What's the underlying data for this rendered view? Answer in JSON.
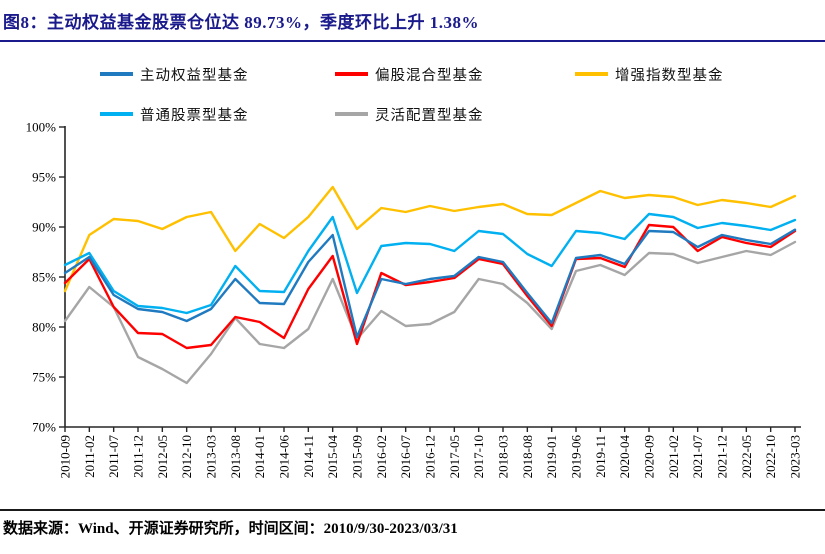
{
  "report": {
    "figure_title": "图8：主动权益基金股票仓位达 89.73%，季度环比上升 1.38%",
    "footer_note": "数据来源：Wind、开源证券研究所，时间区间：2010/9/30-2023/03/31"
  },
  "colors": {
    "title_navy": "#1a1a8c",
    "axis": "#262626",
    "footer_rule": "#1a1a1a"
  },
  "chart_data": {
    "type": "line",
    "title": "主动权益基金股票仓位",
    "xlabel": "",
    "ylabel": "",
    "ylim": [
      70,
      100
    ],
    "grid": false,
    "legend_position": "top",
    "ytick_values": [
      100,
      95,
      90,
      85,
      80,
      75,
      70
    ],
    "ytick_labels": [
      "100%",
      "95%",
      "90%",
      "85%",
      "80%",
      "75%",
      "70%"
    ],
    "categories": [
      "2010-09",
      "2011-02",
      "2011-07",
      "2011-12",
      "2012-05",
      "2012-10",
      "2013-03",
      "2013-08",
      "2014-01",
      "2014-06",
      "2014-11",
      "2015-04",
      "2015-09",
      "2016-02",
      "2016-07",
      "2016-12",
      "2017-05",
      "2017-10",
      "2018-03",
      "2018-08",
      "2019-01",
      "2019-06",
      "2019-11",
      "2020-04",
      "2020-09",
      "2021-02",
      "2021-07",
      "2021-12",
      "2022-05",
      "2022-10",
      "2023-03"
    ],
    "series": [
      {
        "name": "主动权益型基金",
        "color": "#1F7AC0",
        "values": [
          85.4,
          87.0,
          83.2,
          81.8,
          81.5,
          80.6,
          81.8,
          84.8,
          82.4,
          82.3,
          86.5,
          89.2,
          79.0,
          84.8,
          84.3,
          84.8,
          85.1,
          87.0,
          86.5,
          83.4,
          80.4,
          86.9,
          87.2,
          86.3,
          89.6,
          89.5,
          88.0,
          89.2,
          88.7,
          88.3,
          89.73
        ]
      },
      {
        "name": "偏股混合型基金",
        "color": "#FF0000",
        "values": [
          84.4,
          86.8,
          82.0,
          79.4,
          79.3,
          77.9,
          78.2,
          81.0,
          80.5,
          78.9,
          83.8,
          87.1,
          78.3,
          85.4,
          84.2,
          84.5,
          84.9,
          86.8,
          86.3,
          83.1,
          80.1,
          86.8,
          86.9,
          86.0,
          90.2,
          90.0,
          87.6,
          89.0,
          88.4,
          88.0,
          89.6
        ]
      },
      {
        "name": "增强指数型基金",
        "color": "#FFC000",
        "values": [
          83.6,
          89.2,
          90.8,
          90.6,
          89.8,
          91.0,
          91.5,
          87.6,
          90.3,
          88.9,
          91.0,
          94.0,
          89.8,
          91.9,
          91.5,
          92.1,
          91.6,
          92.0,
          92.3,
          91.3,
          91.2,
          92.4,
          93.6,
          92.9,
          93.2,
          93.0,
          92.2,
          92.7,
          92.4,
          92.0,
          93.1
        ]
      },
      {
        "name": "普通股票型基金",
        "color": "#00B0F0",
        "values": [
          86.2,
          87.4,
          83.6,
          82.1,
          81.9,
          81.4,
          82.2,
          86.1,
          83.6,
          83.5,
          87.6,
          91.0,
          83.4,
          88.1,
          88.4,
          88.3,
          87.6,
          89.6,
          89.3,
          87.3,
          86.1,
          89.6,
          89.4,
          88.8,
          91.3,
          91.0,
          89.9,
          90.4,
          90.1,
          89.7,
          90.7
        ]
      },
      {
        "name": "灵活配置型基金",
        "color": "#A6A6A6",
        "values": [
          80.6,
          84.0,
          82.0,
          77.0,
          75.8,
          74.4,
          77.3,
          80.9,
          78.3,
          77.9,
          79.8,
          84.8,
          78.8,
          81.6,
          80.1,
          80.3,
          81.5,
          84.8,
          84.3,
          82.4,
          79.8,
          85.6,
          86.2,
          85.2,
          87.4,
          87.3,
          86.4,
          87.0,
          87.6,
          87.2,
          88.5
        ]
      }
    ]
  },
  "legend_layout": {
    "row1": [
      0,
      1,
      2
    ],
    "row2": [
      3,
      4
    ]
  }
}
